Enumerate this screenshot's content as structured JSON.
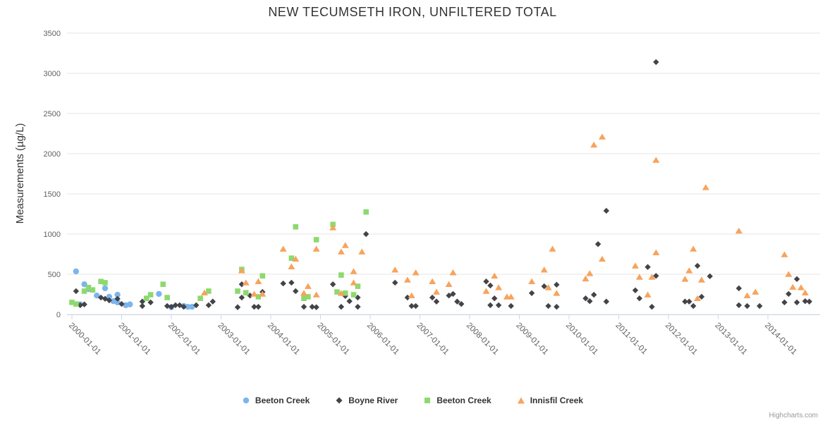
{
  "title": "NEW TECUMSETH IRON, UNFILTERED TOTAL",
  "credits": "Highcharts.com",
  "y_axis": {
    "title": "Measurements (µg/L)",
    "ticks": [
      0,
      500,
      1000,
      1500,
      2000,
      2500,
      3000,
      3500
    ]
  },
  "x_axis": {
    "tick_labels": [
      "2000-01-01",
      "2001-01-01",
      "2002-01-01",
      "2003-01-01",
      "2004-01-01",
      "2005-01-01",
      "2006-01-01",
      "2007-01-01",
      "2008-01-01",
      "2009-01-01",
      "2010-01-01",
      "2011-01-01",
      "2012-01-01",
      "2013-01-01",
      "2014-01-01"
    ]
  },
  "chart_data": {
    "type": "scatter",
    "title": "NEW TECUMSETH IRON, UNFILTERED TOTAL",
    "xlabel": "",
    "ylabel": "Measurements (µg/L)",
    "ylim": [
      0,
      3500
    ],
    "x_range": [
      "2000-01-01",
      "2015-01-01"
    ],
    "grid": "horizontal",
    "legend_position": "bottom",
    "series": [
      {
        "name": "Beeton Creek",
        "marker": "circle",
        "color": "#7cb5ec",
        "points": [
          [
            "2000-02",
            535
          ],
          [
            "2000-03",
            125
          ],
          [
            "2000-04",
            375
          ],
          [
            "2000-05",
            315
          ],
          [
            "2000-07",
            235
          ],
          [
            "2000-09",
            325
          ],
          [
            "2000-10",
            220
          ],
          [
            "2000-11",
            165
          ],
          [
            "2000-12",
            245
          ],
          [
            "2000-12",
            150
          ],
          [
            "2001-02",
            115
          ],
          [
            "2001-03",
            125
          ],
          [
            "2001-10",
            255
          ],
          [
            "2002-01",
            90
          ],
          [
            "2002-04",
            105
          ],
          [
            "2002-05",
            95
          ],
          [
            "2002-06",
            95
          ]
        ]
      },
      {
        "name": "Boyne River",
        "marker": "diamond",
        "color": "#434348",
        "points": [
          [
            "2000-02",
            290
          ],
          [
            "2000-03",
            115
          ],
          [
            "2000-04",
            125
          ],
          [
            "2000-08",
            210
          ],
          [
            "2000-09",
            195
          ],
          [
            "2000-10",
            175
          ],
          [
            "2000-12",
            195
          ],
          [
            "2001-01",
            130
          ],
          [
            "2001-06",
            160
          ],
          [
            "2001-06",
            105
          ],
          [
            "2001-08",
            150
          ],
          [
            "2001-12",
            105
          ],
          [
            "2002-01",
            95
          ],
          [
            "2002-02",
            115
          ],
          [
            "2002-03",
            115
          ],
          [
            "2002-04",
            95
          ],
          [
            "2002-07",
            115
          ],
          [
            "2002-10",
            115
          ],
          [
            "2002-11",
            160
          ],
          [
            "2003-05",
            90
          ],
          [
            "2003-06",
            210
          ],
          [
            "2003-06",
            375
          ],
          [
            "2003-08",
            235
          ],
          [
            "2003-09",
            95
          ],
          [
            "2003-10",
            95
          ],
          [
            "2003-11",
            280
          ],
          [
            "2004-04",
            385
          ],
          [
            "2004-06",
            395
          ],
          [
            "2004-07",
            290
          ],
          [
            "2004-09",
            95
          ],
          [
            "2004-11",
            95
          ],
          [
            "2004-12",
            90
          ],
          [
            "2005-04",
            375
          ],
          [
            "2005-06",
            95
          ],
          [
            "2005-07",
            230
          ],
          [
            "2005-08",
            165
          ],
          [
            "2005-10",
            95
          ],
          [
            "2005-10",
            210
          ],
          [
            "2005-12",
            1000
          ],
          [
            "2006-07",
            395
          ],
          [
            "2006-10",
            210
          ],
          [
            "2006-11",
            105
          ],
          [
            "2006-12",
            105
          ],
          [
            "2007-04",
            210
          ],
          [
            "2007-05",
            160
          ],
          [
            "2007-08",
            235
          ],
          [
            "2007-09",
            255
          ],
          [
            "2007-10",
            160
          ],
          [
            "2007-11",
            130
          ],
          [
            "2008-05",
            410
          ],
          [
            "2008-06",
            115
          ],
          [
            "2008-06",
            360
          ],
          [
            "2008-07",
            200
          ],
          [
            "2008-08",
            115
          ],
          [
            "2008-11",
            105
          ],
          [
            "2009-04",
            265
          ],
          [
            "2009-07",
            350
          ],
          [
            "2009-08",
            105
          ],
          [
            "2009-10",
            370
          ],
          [
            "2009-10",
            95
          ],
          [
            "2010-05",
            200
          ],
          [
            "2010-06",
            165
          ],
          [
            "2010-07",
            245
          ],
          [
            "2010-08",
            875
          ],
          [
            "2010-10",
            1290
          ],
          [
            "2010-10",
            160
          ],
          [
            "2011-05",
            300
          ],
          [
            "2011-06",
            200
          ],
          [
            "2011-08",
            590
          ],
          [
            "2011-09",
            95
          ],
          [
            "2011-10",
            3140
          ],
          [
            "2011-10",
            480
          ],
          [
            "2012-05",
            160
          ],
          [
            "2012-06",
            160
          ],
          [
            "2012-07",
            105
          ],
          [
            "2012-08",
            605
          ],
          [
            "2012-09",
            220
          ],
          [
            "2012-11",
            475
          ],
          [
            "2013-06",
            325
          ],
          [
            "2013-06",
            115
          ],
          [
            "2013-08",
            105
          ],
          [
            "2013-11",
            105
          ],
          [
            "2014-05",
            150
          ],
          [
            "2014-06",
            255
          ],
          [
            "2014-08",
            150
          ],
          [
            "2014-08",
            440
          ],
          [
            "2014-10",
            165
          ],
          [
            "2014-11",
            160
          ]
        ]
      },
      {
        "name": "Beeton Creek",
        "marker": "square",
        "color": "#8dd96e",
        "points": [
          [
            "2000-01",
            150
          ],
          [
            "2000-02",
            130
          ],
          [
            "2000-04",
            290
          ],
          [
            "2000-05",
            335
          ],
          [
            "2000-06",
            305
          ],
          [
            "2000-08",
            410
          ],
          [
            "2000-09",
            395
          ],
          [
            "2001-07",
            200
          ],
          [
            "2001-08",
            245
          ],
          [
            "2001-11",
            375
          ],
          [
            "2001-12",
            210
          ],
          [
            "2002-08",
            200
          ],
          [
            "2002-10",
            290
          ],
          [
            "2003-05",
            290
          ],
          [
            "2003-06",
            560
          ],
          [
            "2003-07",
            270
          ],
          [
            "2003-10",
            220
          ],
          [
            "2003-11",
            480
          ],
          [
            "2004-06",
            700
          ],
          [
            "2004-07",
            1090
          ],
          [
            "2004-09",
            200
          ],
          [
            "2004-10",
            220
          ],
          [
            "2004-12",
            930
          ],
          [
            "2005-04",
            1120
          ],
          [
            "2005-05",
            280
          ],
          [
            "2005-06",
            490
          ],
          [
            "2005-07",
            265
          ],
          [
            "2005-09",
            245
          ],
          [
            "2005-10",
            350
          ],
          [
            "2005-12",
            1275
          ]
        ]
      },
      {
        "name": "Innisfil Creek",
        "marker": "triangle",
        "color": "#f7a35c",
        "points": [
          [
            "2002-09",
            270
          ],
          [
            "2003-06",
            545
          ],
          [
            "2003-07",
            395
          ],
          [
            "2003-09",
            255
          ],
          [
            "2003-10",
            410
          ],
          [
            "2003-11",
            255
          ],
          [
            "2004-04",
            815
          ],
          [
            "2004-06",
            595
          ],
          [
            "2004-07",
            690
          ],
          [
            "2004-09",
            265
          ],
          [
            "2004-10",
            350
          ],
          [
            "2004-12",
            245
          ],
          [
            "2004-12",
            815
          ],
          [
            "2005-04",
            1080
          ],
          [
            "2005-06",
            265
          ],
          [
            "2005-06",
            780
          ],
          [
            "2005-07",
            860
          ],
          [
            "2005-09",
            535
          ],
          [
            "2005-09",
            395
          ],
          [
            "2005-11",
            780
          ],
          [
            "2006-07",
            555
          ],
          [
            "2006-10",
            430
          ],
          [
            "2006-11",
            235
          ],
          [
            "2006-12",
            520
          ],
          [
            "2007-04",
            410
          ],
          [
            "2007-05",
            280
          ],
          [
            "2007-08",
            375
          ],
          [
            "2007-09",
            520
          ],
          [
            "2007-09",
            520
          ],
          [
            "2008-05",
            290
          ],
          [
            "2008-07",
            480
          ],
          [
            "2008-08",
            335
          ],
          [
            "2008-10",
            220
          ],
          [
            "2008-11",
            220
          ],
          [
            "2009-04",
            410
          ],
          [
            "2009-07",
            555
          ],
          [
            "2009-08",
            335
          ],
          [
            "2009-09",
            815
          ],
          [
            "2009-10",
            265
          ],
          [
            "2010-05",
            445
          ],
          [
            "2010-06",
            510
          ],
          [
            "2010-07",
            2110
          ],
          [
            "2010-09",
            2210
          ],
          [
            "2010-09",
            690
          ],
          [
            "2011-05",
            605
          ],
          [
            "2011-06",
            465
          ],
          [
            "2011-08",
            245
          ],
          [
            "2011-09",
            465
          ],
          [
            "2011-10",
            1920
          ],
          [
            "2011-10",
            770
          ],
          [
            "2012-05",
            440
          ],
          [
            "2012-06",
            545
          ],
          [
            "2012-07",
            815
          ],
          [
            "2012-08",
            200
          ],
          [
            "2012-09",
            430
          ],
          [
            "2012-10",
            1580
          ],
          [
            "2013-06",
            1040
          ],
          [
            "2013-08",
            235
          ],
          [
            "2013-10",
            280
          ],
          [
            "2014-05",
            745
          ],
          [
            "2014-06",
            500
          ],
          [
            "2014-07",
            340
          ],
          [
            "2014-09",
            335
          ],
          [
            "2014-10",
            270
          ]
        ]
      }
    ]
  }
}
